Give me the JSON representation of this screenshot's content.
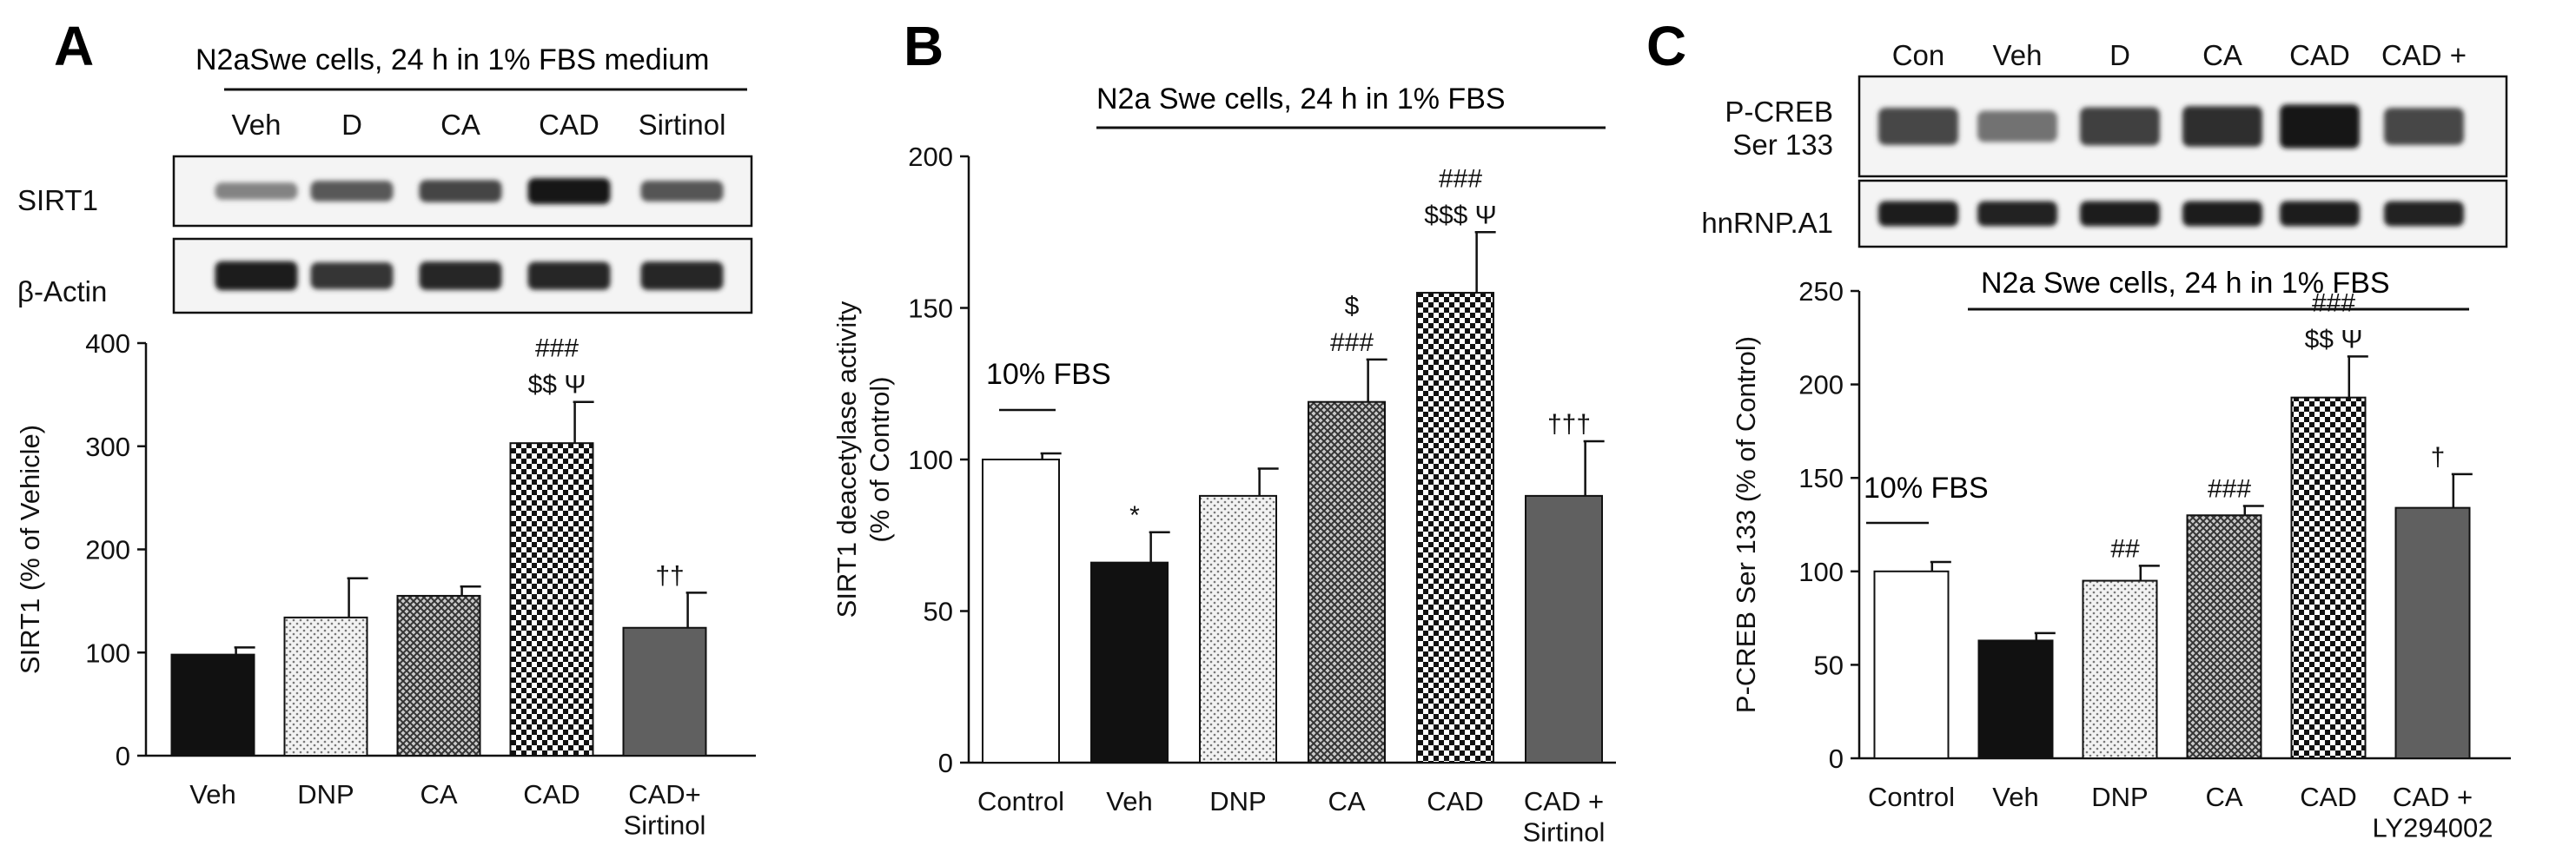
{
  "colors": {
    "ink": "#111111",
    "black_bar": "#111111",
    "dark_gray_bar": "#606060",
    "white_bar": "#ffffff",
    "dotted_bar": "light-dotted-pattern",
    "cross_bar": "mid-crosshatch-pattern",
    "checker_bar": "checker-pattern"
  },
  "panels": [
    {
      "letter": "A",
      "header": "N2aSwe cells, 24 h in 1% FBS medium",
      "blot_lanes": [
        "Veh",
        "D",
        "CA",
        "CAD",
        "Sirtinol"
      ],
      "blot_rows": [
        {
          "label": "SIRT1",
          "band_intensity": [
            0.35,
            0.6,
            0.72,
            1.0,
            0.62
          ]
        },
        {
          "label": "β-Actin",
          "band_intensity": [
            0.95,
            0.8,
            0.9,
            0.88,
            0.9
          ]
        }
      ]
    },
    {
      "letter": "B",
      "header": "N2a Swe cells, 24 h in 1%  FBS",
      "note": "10% FBS"
    },
    {
      "letter": "C",
      "header": "N2a Swe cells, 24 h in 1%  FBS",
      "note": "10% FBS",
      "blot_lanes": [
        "Con",
        "Veh",
        "D",
        "CA",
        "CAD",
        "CAD +\nLY294002"
      ],
      "blot_rows": [
        {
          "label": "P-CREB\nSer 133",
          "band_intensity": [
            0.7,
            0.45,
            0.75,
            0.85,
            1.0,
            0.7
          ]
        },
        {
          "label": "hnRNP.A1",
          "band_intensity": [
            0.95,
            0.92,
            0.95,
            0.95,
            0.95,
            0.93
          ]
        }
      ]
    }
  ],
  "chart_data": [
    {
      "type": "bar",
      "title": "",
      "xlabel": "",
      "ylabel": "SIRT1 (% of Vehicle)",
      "ylim": [
        0,
        400
      ],
      "yticks": [
        0,
        100,
        200,
        300,
        400
      ],
      "categories": [
        "Veh",
        "DNP",
        "CA",
        "CAD",
        "CAD+\nSirtinol"
      ],
      "values": [
        98,
        134,
        155,
        303,
        124
      ],
      "errors": [
        7,
        38,
        9,
        40,
        34
      ],
      "fills": [
        "black",
        "dotted",
        "cross",
        "checker",
        "darkgray"
      ],
      "annotations": [
        "",
        "",
        "",
        "###\n$$ Ψ",
        "††"
      ],
      "grid": false,
      "legend": "none"
    },
    {
      "type": "bar",
      "title": "",
      "xlabel": "",
      "ylabel": "SIRT1 deacetylase activity\n(% of Control)",
      "ylim": [
        0,
        200
      ],
      "yticks": [
        0,
        50,
        100,
        150,
        200
      ],
      "categories": [
        "Control",
        "Veh",
        "DNP",
        "CA",
        "CAD",
        "CAD +\nSirtinol"
      ],
      "values": [
        100,
        66,
        88,
        119,
        155,
        88
      ],
      "errors": [
        2,
        10,
        9,
        14,
        20,
        18
      ],
      "fills": [
        "white",
        "black",
        "dotted",
        "cross",
        "checker",
        "darkgray"
      ],
      "annotations": [
        "",
        "*",
        "",
        "$\n###",
        "###\n$$$ Ψ",
        "†††"
      ],
      "grid": false,
      "legend": "none"
    },
    {
      "type": "bar",
      "title": "",
      "xlabel": "",
      "ylabel": "P-CREB Ser 133  (% of Control)",
      "ylim": [
        0,
        250
      ],
      "yticks": [
        0,
        50,
        100,
        150,
        200,
        250
      ],
      "categories": [
        "Control",
        "Veh",
        "DNP",
        "CA",
        "CAD",
        "CAD +\nLY294002"
      ],
      "values": [
        100,
        63,
        95,
        130,
        193,
        134
      ],
      "errors": [
        5,
        4,
        8,
        5,
        22,
        18
      ],
      "fills": [
        "white",
        "black",
        "dotted",
        "cross",
        "checker",
        "darkgray"
      ],
      "annotations": [
        "",
        "",
        "##",
        "###",
        "###\n$$ Ψ",
        "†"
      ],
      "grid": false,
      "legend": "none"
    }
  ]
}
